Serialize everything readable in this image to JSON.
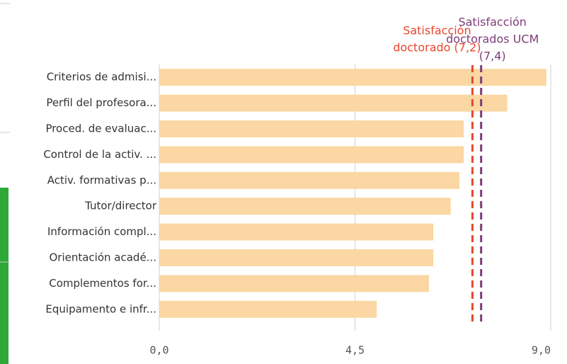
{
  "chart_data": {
    "type": "bar",
    "orientation": "horizontal",
    "categories": [
      "Criterios de admisi...",
      "Perfil del profesora...",
      "Proced. de evaluac...",
      "Control de la activ. ...",
      "Activ. formativas p...",
      "Tutor/director",
      "Información compl...",
      "Orientación acadé...",
      "Complementos for...",
      "Equipamento e infr..."
    ],
    "values": [
      8.9,
      8.0,
      7.0,
      7.0,
      6.9,
      6.7,
      6.3,
      6.3,
      6.2,
      5.0
    ],
    "color": "#fad7a3",
    "xlim": [
      0,
      9
    ],
    "xticks": [
      {
        "value": 0,
        "label": "0,0"
      },
      {
        "value": 4.5,
        "label": "4,5"
      },
      {
        "value": 9,
        "label": "9,0"
      }
    ],
    "grid": true,
    "reference_lines": [
      {
        "value": 7.2,
        "label_lines": [
          "Satisfacción",
          "doctorado (7,2)"
        ],
        "color": "#e8452c"
      },
      {
        "value": 7.4,
        "label_lines": [
          "Satisfacción",
          "doctorados UCM",
          "(7,4)"
        ],
        "color": "#7d3c78"
      }
    ]
  }
}
